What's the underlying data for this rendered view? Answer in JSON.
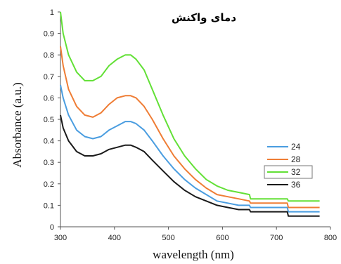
{
  "chart_data": {
    "type": "line",
    "title": "دمای واکنش",
    "xlabel": "wavelength (nm)",
    "ylabel": "Absorbance (a.u.)",
    "xlim": [
      300,
      800
    ],
    "ylim": [
      0,
      1
    ],
    "xticks": [
      "300",
      "400",
      "500",
      "600",
      "700",
      "800"
    ],
    "yticks": [
      "0",
      "0.1",
      "0.2",
      "0.3",
      "0.4",
      "0.5",
      "0.6",
      "0.7",
      "0.8",
      "0.9",
      "1"
    ],
    "grid": false,
    "legend_position": "right",
    "series": [
      {
        "name": "24",
        "color": "#4a9de0",
        "x": [
          300,
          305,
          315,
          330,
          345,
          360,
          375,
          390,
          405,
          420,
          430,
          440,
          455,
          470,
          490,
          510,
          530,
          550,
          570,
          590,
          610,
          630,
          650,
          652,
          700,
          720,
          722,
          760,
          780
        ],
        "y": [
          0.66,
          0.6,
          0.52,
          0.45,
          0.42,
          0.41,
          0.42,
          0.45,
          0.47,
          0.49,
          0.49,
          0.48,
          0.45,
          0.4,
          0.33,
          0.27,
          0.22,
          0.18,
          0.15,
          0.12,
          0.11,
          0.1,
          0.1,
          0.09,
          0.09,
          0.09,
          0.07,
          0.07,
          0.07
        ]
      },
      {
        "name": "28",
        "color": "#ef7d35",
        "x": [
          300,
          305,
          315,
          330,
          345,
          360,
          375,
          390,
          405,
          420,
          430,
          440,
          455,
          470,
          490,
          510,
          530,
          550,
          570,
          590,
          610,
          630,
          650,
          652,
          700,
          720,
          722,
          760,
          780
        ],
        "y": [
          0.84,
          0.75,
          0.64,
          0.56,
          0.52,
          0.51,
          0.53,
          0.57,
          0.6,
          0.61,
          0.61,
          0.6,
          0.56,
          0.5,
          0.41,
          0.33,
          0.27,
          0.22,
          0.18,
          0.15,
          0.14,
          0.13,
          0.12,
          0.11,
          0.11,
          0.11,
          0.09,
          0.09,
          0.09
        ]
      },
      {
        "name": "32",
        "color": "#62e036",
        "x": [
          300,
          305,
          315,
          330,
          345,
          360,
          375,
          390,
          405,
          420,
          430,
          440,
          455,
          470,
          490,
          510,
          530,
          550,
          570,
          590,
          610,
          630,
          650,
          652,
          700,
          720,
          722,
          760,
          780
        ],
        "y": [
          1.0,
          0.9,
          0.8,
          0.72,
          0.68,
          0.68,
          0.7,
          0.75,
          0.78,
          0.8,
          0.8,
          0.78,
          0.73,
          0.64,
          0.52,
          0.41,
          0.33,
          0.27,
          0.22,
          0.19,
          0.17,
          0.16,
          0.15,
          0.13,
          0.13,
          0.13,
          0.12,
          0.12,
          0.12
        ]
      },
      {
        "name": "36",
        "color": "#1a1a1a",
        "x": [
          300,
          305,
          315,
          330,
          345,
          360,
          375,
          390,
          405,
          420,
          430,
          440,
          455,
          470,
          490,
          510,
          530,
          550,
          570,
          590,
          610,
          630,
          650,
          652,
          700,
          720,
          722,
          760,
          780
        ],
        "y": [
          0.52,
          0.46,
          0.4,
          0.35,
          0.33,
          0.33,
          0.34,
          0.36,
          0.37,
          0.38,
          0.38,
          0.37,
          0.35,
          0.31,
          0.26,
          0.21,
          0.17,
          0.14,
          0.12,
          0.1,
          0.09,
          0.08,
          0.08,
          0.07,
          0.07,
          0.07,
          0.05,
          0.05,
          0.05
        ]
      }
    ]
  }
}
